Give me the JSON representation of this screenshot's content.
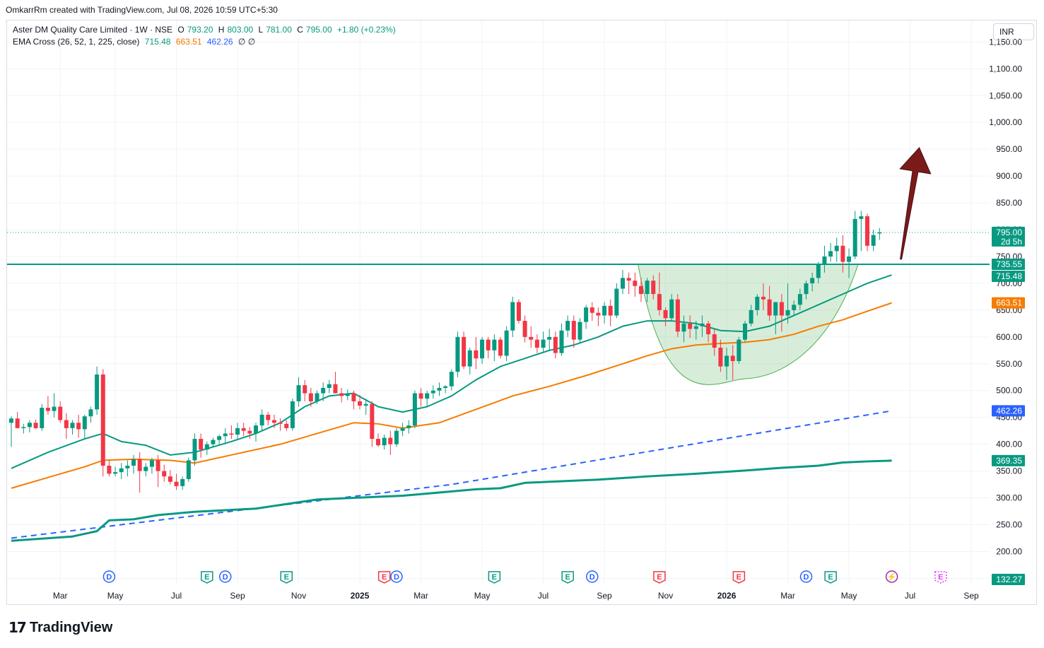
{
  "header": {
    "credit": "OmkarrRm created with TradingView.com, Jul 08, 2026 10:59 UTC+5:30"
  },
  "legend": {
    "symbol": "Aster DM Quality Care Limited · 1W · NSE",
    "o_key": "O",
    "o_val": "793.20",
    "h_key": "H",
    "h_val": "803.00",
    "l_key": "L",
    "l_val": "781.00",
    "c_key": "C",
    "c_val": "795.00",
    "change": "+1.80 (+0.23%)",
    "ema_label": "EMA Cross (26, 52, 1, 225, close)",
    "ema_fast": "715.48",
    "ema_slow": "663.51",
    "ema_long": "462.26",
    "ema_extra": "∅ ∅"
  },
  "currency": "INR",
  "logo": {
    "text": "TradingView",
    "mark": "17"
  },
  "colors": {
    "up": "#089981",
    "down": "#f23645",
    "ema_fast": "#089981",
    "ema_slow": "#f57c00",
    "ema_long": "#2962ff",
    "ema_slowest": "#089981",
    "cup_fill": "#4caf50",
    "arrow": "#7b1a1a",
    "grid": "#f0f3fa"
  },
  "chart_data": {
    "type": "candlestick",
    "title": "Aster DM Quality Care Limited · 1W · NSE",
    "ylim": [
      140,
      1190
    ],
    "y_ticks": [
      "150.00",
      "200.00",
      "250.00",
      "300.00",
      "350.00",
      "400.00",
      "450.00",
      "500.00",
      "550.00",
      "600.00",
      "650.00",
      "700.00",
      "750.00",
      "800.00",
      "850.00",
      "900.00",
      "950.00",
      "1,000.00",
      "1,050.00",
      "1,100.00",
      "1,150.00"
    ],
    "y_tick_values": [
      150,
      200,
      250,
      300,
      350,
      400,
      450,
      500,
      550,
      600,
      650,
      700,
      750,
      800,
      850,
      900,
      950,
      1000,
      1050,
      1100,
      1150
    ],
    "x_labels": [
      "Mar",
      "May",
      "Jul",
      "Sep",
      "Nov",
      "2025",
      "Mar",
      "May",
      "Jul",
      "Sep",
      "Nov",
      "2026",
      "Mar",
      "May",
      "Jul",
      "Sep"
    ],
    "x_label_index": [
      8,
      17,
      27,
      37,
      47,
      57,
      67,
      77,
      87,
      97,
      107,
      117,
      127,
      137,
      147,
      157
    ],
    "x_bold": [
      "2025",
      "2026"
    ],
    "candles": [
      [
        440,
        452,
        395,
        448
      ],
      [
        448,
        460,
        435,
        430
      ],
      [
        430,
        438,
        420,
        432
      ],
      [
        432,
        445,
        422,
        440
      ],
      [
        440,
        446,
        428,
        430
      ],
      [
        430,
        475,
        425,
        468
      ],
      [
        468,
        490,
        455,
        462
      ],
      [
        462,
        495,
        450,
        470
      ],
      [
        470,
        480,
        440,
        445
      ],
      [
        445,
        458,
        410,
        430
      ],
      [
        430,
        445,
        418,
        440
      ],
      [
        440,
        455,
        412,
        428
      ],
      [
        428,
        455,
        410,
        452
      ],
      [
        452,
        470,
        440,
        465
      ],
      [
        465,
        545,
        455,
        530
      ],
      [
        530,
        540,
        340,
        360
      ],
      [
        360,
        370,
        340,
        345
      ],
      [
        345,
        358,
        340,
        348
      ],
      [
        348,
        365,
        335,
        355
      ],
      [
        355,
        370,
        340,
        360
      ],
      [
        360,
        380,
        345,
        372
      ],
      [
        372,
        385,
        310,
        350
      ],
      [
        350,
        365,
        340,
        358
      ],
      [
        358,
        375,
        345,
        370
      ],
      [
        370,
        380,
        320,
        350
      ],
      [
        350,
        362,
        330,
        340
      ],
      [
        340,
        352,
        325,
        330
      ],
      [
        330,
        345,
        315,
        322
      ],
      [
        322,
        340,
        315,
        335
      ],
      [
        335,
        375,
        330,
        370
      ],
      [
        370,
        420,
        360,
        410
      ],
      [
        410,
        420,
        375,
        390
      ],
      [
        390,
        405,
        380,
        400
      ],
      [
        400,
        412,
        395,
        408
      ],
      [
        408,
        418,
        398,
        415
      ],
      [
        415,
        430,
        400,
        420
      ],
      [
        420,
        435,
        410,
        418
      ],
      [
        418,
        440,
        410,
        430
      ],
      [
        430,
        440,
        415,
        425
      ],
      [
        425,
        432,
        410,
        420
      ],
      [
        420,
        440,
        405,
        435
      ],
      [
        435,
        465,
        425,
        455
      ],
      [
        455,
        460,
        435,
        445
      ],
      [
        445,
        455,
        430,
        440
      ],
      [
        440,
        448,
        425,
        438
      ],
      [
        438,
        445,
        425,
        430
      ],
      [
        430,
        485,
        425,
        480
      ],
      [
        480,
        525,
        470,
        510
      ],
      [
        510,
        520,
        480,
        495
      ],
      [
        495,
        505,
        470,
        480
      ],
      [
        480,
        500,
        475,
        495
      ],
      [
        495,
        515,
        480,
        505
      ],
      [
        505,
        520,
        495,
        512
      ],
      [
        512,
        535,
        495,
        495
      ],
      [
        495,
        505,
        478,
        490
      ],
      [
        490,
        502,
        482,
        495
      ],
      [
        495,
        500,
        465,
        480
      ],
      [
        480,
        492,
        465,
        472
      ],
      [
        472,
        485,
        455,
        475
      ],
      [
        475,
        480,
        395,
        410
      ],
      [
        410,
        420,
        395,
        398
      ],
      [
        398,
        418,
        390,
        412
      ],
      [
        412,
        425,
        380,
        400
      ],
      [
        400,
        430,
        395,
        425
      ],
      [
        425,
        440,
        415,
        430
      ],
      [
        430,
        445,
        420,
        435
      ],
      [
        435,
        500,
        430,
        495
      ],
      [
        495,
        505,
        470,
        485
      ],
      [
        485,
        500,
        470,
        495
      ],
      [
        495,
        510,
        485,
        500
      ],
      [
        500,
        515,
        490,
        505
      ],
      [
        505,
        510,
        495,
        508
      ],
      [
        508,
        540,
        500,
        535
      ],
      [
        535,
        610,
        525,
        600
      ],
      [
        600,
        610,
        540,
        545
      ],
      [
        545,
        580,
        530,
        575
      ],
      [
        575,
        600,
        540,
        560
      ],
      [
        560,
        600,
        550,
        595
      ],
      [
        595,
        600,
        560,
        575
      ],
      [
        575,
        605,
        555,
        595
      ],
      [
        595,
        600,
        560,
        565
      ],
      [
        565,
        620,
        555,
        612
      ],
      [
        612,
        675,
        600,
        665
      ],
      [
        665,
        670,
        625,
        630
      ],
      [
        630,
        640,
        590,
        600
      ],
      [
        600,
        620,
        580,
        595
      ],
      [
        595,
        605,
        570,
        580
      ],
      [
        580,
        610,
        570,
        595
      ],
      [
        595,
        615,
        575,
        600
      ],
      [
        600,
        610,
        560,
        570
      ],
      [
        570,
        625,
        565,
        612
      ],
      [
        612,
        640,
        600,
        630
      ],
      [
        630,
        640,
        580,
        595
      ],
      [
        595,
        635,
        590,
        628
      ],
      [
        628,
        660,
        615,
        655
      ],
      [
        655,
        665,
        630,
        645
      ],
      [
        645,
        655,
        620,
        640
      ],
      [
        640,
        665,
        625,
        658
      ],
      [
        658,
        670,
        620,
        640
      ],
      [
        640,
        700,
        635,
        690
      ],
      [
        690,
        725,
        680,
        710
      ],
      [
        710,
        720,
        680,
        705
      ],
      [
        705,
        720,
        675,
        695
      ],
      [
        695,
        710,
        665,
        680
      ],
      [
        680,
        710,
        665,
        705
      ],
      [
        705,
        715,
        670,
        680
      ],
      [
        680,
        720,
        640,
        650
      ],
      [
        650,
        655,
        620,
        635
      ],
      [
        635,
        680,
        630,
        670
      ],
      [
        670,
        680,
        600,
        610
      ],
      [
        610,
        640,
        590,
        625
      ],
      [
        625,
        640,
        598,
        615
      ],
      [
        615,
        630,
        595,
        620
      ],
      [
        620,
        640,
        600,
        625
      ],
      [
        625,
        630,
        590,
        605
      ],
      [
        605,
        615,
        565,
        580
      ],
      [
        580,
        595,
        535,
        545
      ],
      [
        545,
        580,
        520,
        565
      ],
      [
        565,
        585,
        520,
        555
      ],
      [
        555,
        600,
        550,
        595
      ],
      [
        595,
        630,
        590,
        625
      ],
      [
        625,
        660,
        620,
        650
      ],
      [
        650,
        680,
        640,
        675
      ],
      [
        675,
        700,
        650,
        670
      ],
      [
        670,
        695,
        630,
        640
      ],
      [
        640,
        660,
        605,
        665
      ],
      [
        665,
        680,
        610,
        640
      ],
      [
        640,
        700,
        625,
        650
      ],
      [
        650,
        668,
        640,
        660
      ],
      [
        660,
        690,
        650,
        680
      ],
      [
        680,
        705,
        670,
        700
      ],
      [
        700,
        720,
        685,
        710
      ],
      [
        710,
        740,
        700,
        735
      ],
      [
        735,
        770,
        720,
        750
      ],
      [
        750,
        775,
        740,
        760
      ],
      [
        760,
        785,
        740,
        770
      ],
      [
        770,
        790,
        720,
        740
      ],
      [
        740,
        765,
        710,
        750
      ],
      [
        750,
        835,
        745,
        820
      ],
      [
        820,
        835,
        760,
        825
      ],
      [
        825,
        830,
        760,
        770
      ],
      [
        770,
        800,
        760,
        790
      ],
      [
        793,
        803,
        781,
        795
      ]
    ],
    "series": [
      {
        "name": "EMA 26",
        "last": 715.48,
        "values": [
          [
            0,
            355
          ],
          [
            6,
            385
          ],
          [
            12,
            410
          ],
          [
            15,
            420
          ],
          [
            18,
            405
          ],
          [
            22,
            398
          ],
          [
            26,
            380
          ],
          [
            30,
            385
          ],
          [
            36,
            405
          ],
          [
            40,
            420
          ],
          [
            44,
            440
          ],
          [
            48,
            470
          ],
          [
            52,
            490
          ],
          [
            56,
            495
          ],
          [
            60,
            470
          ],
          [
            64,
            460
          ],
          [
            68,
            470
          ],
          [
            72,
            490
          ],
          [
            76,
            520
          ],
          [
            80,
            545
          ],
          [
            84,
            560
          ],
          [
            88,
            575
          ],
          [
            92,
            585
          ],
          [
            96,
            600
          ],
          [
            100,
            620
          ],
          [
            104,
            630
          ],
          [
            108,
            630
          ],
          [
            112,
            625
          ],
          [
            116,
            612
          ],
          [
            120,
            610
          ],
          [
            124,
            620
          ],
          [
            128,
            640
          ],
          [
            132,
            660
          ],
          [
            136,
            680
          ],
          [
            140,
            700
          ],
          [
            144,
            715.48
          ]
        ]
      },
      {
        "name": "EMA 52",
        "last": 663.51,
        "values": [
          [
            0,
            318
          ],
          [
            6,
            338
          ],
          [
            12,
            358
          ],
          [
            15,
            370
          ],
          [
            20,
            372
          ],
          [
            26,
            370
          ],
          [
            30,
            365
          ],
          [
            36,
            380
          ],
          [
            44,
            400
          ],
          [
            50,
            420
          ],
          [
            56,
            440
          ],
          [
            60,
            438
          ],
          [
            64,
            430
          ],
          [
            70,
            440
          ],
          [
            76,
            465
          ],
          [
            82,
            490
          ],
          [
            88,
            508
          ],
          [
            94,
            528
          ],
          [
            100,
            550
          ],
          [
            104,
            565
          ],
          [
            108,
            578
          ],
          [
            112,
            585
          ],
          [
            116,
            588
          ],
          [
            120,
            590
          ],
          [
            124,
            595
          ],
          [
            128,
            605
          ],
          [
            132,
            620
          ],
          [
            136,
            632
          ],
          [
            140,
            648
          ],
          [
            144,
            663.51
          ]
        ]
      },
      {
        "name": "EMA 225",
        "last": 462.26,
        "values": [
          [
            0,
            225
          ],
          [
            72,
            325
          ],
          [
            144,
            462.26
          ]
        ]
      },
      {
        "name": "EMA slow",
        "last": 369.35,
        "values": [
          [
            0,
            220
          ],
          [
            10,
            228
          ],
          [
            14,
            238
          ],
          [
            16,
            258
          ],
          [
            20,
            260
          ],
          [
            24,
            268
          ],
          [
            30,
            274
          ],
          [
            40,
            280
          ],
          [
            50,
            297
          ],
          [
            60,
            302
          ],
          [
            64,
            304
          ],
          [
            68,
            308
          ],
          [
            76,
            316
          ],
          [
            80,
            318
          ],
          [
            84,
            328
          ],
          [
            88,
            330
          ],
          [
            96,
            334
          ],
          [
            104,
            340
          ],
          [
            112,
            345
          ],
          [
            120,
            351
          ],
          [
            126,
            356
          ],
          [
            132,
            360
          ],
          [
            136,
            366
          ],
          [
            140,
            368
          ],
          [
            144,
            369.35
          ]
        ]
      }
    ],
    "horizontal_line": 735.55,
    "price_tags": [
      {
        "value": "795.00",
        "sub": "2d 5h",
        "price": 795,
        "color": "#089981"
      },
      {
        "value": "735.55",
        "price": 735.55,
        "color": "#089981"
      },
      {
        "value": "715.48",
        "price": 715.48,
        "color": "#089981"
      },
      {
        "value": "663.51",
        "price": 663.51,
        "color": "#f57c00"
      },
      {
        "value": "462.26",
        "price": 462.26,
        "color": "#2962ff"
      },
      {
        "value": "369.35",
        "price": 369.35,
        "color": "#089981"
      },
      {
        "value": "132.27",
        "price": 132.27,
        "color": "#089981"
      }
    ],
    "event_markers": [
      {
        "label": "D",
        "index": 16,
        "kind": "dividend"
      },
      {
        "label": "E",
        "index": 32,
        "kind": "earnings"
      },
      {
        "label": "D",
        "index": 35,
        "kind": "dividend"
      },
      {
        "label": "E",
        "index": 45,
        "kind": "earnings"
      },
      {
        "label": "E",
        "index": 61,
        "kind": "earnings-neg"
      },
      {
        "label": "D",
        "index": 63,
        "kind": "dividend"
      },
      {
        "label": "E",
        "index": 79,
        "kind": "earnings"
      },
      {
        "label": "E",
        "index": 91,
        "kind": "earnings"
      },
      {
        "label": "D",
        "index": 95,
        "kind": "dividend"
      },
      {
        "label": "E",
        "index": 106,
        "kind": "earnings-neg"
      },
      {
        "label": "E",
        "index": 119,
        "kind": "earnings-neg"
      },
      {
        "label": "D",
        "index": 130,
        "kind": "dividend"
      },
      {
        "label": "E",
        "index": 134,
        "kind": "earnings"
      },
      {
        "label": "⚡",
        "index": 144,
        "kind": "split"
      },
      {
        "label": "E",
        "index": 152,
        "kind": "future"
      }
    ]
  }
}
